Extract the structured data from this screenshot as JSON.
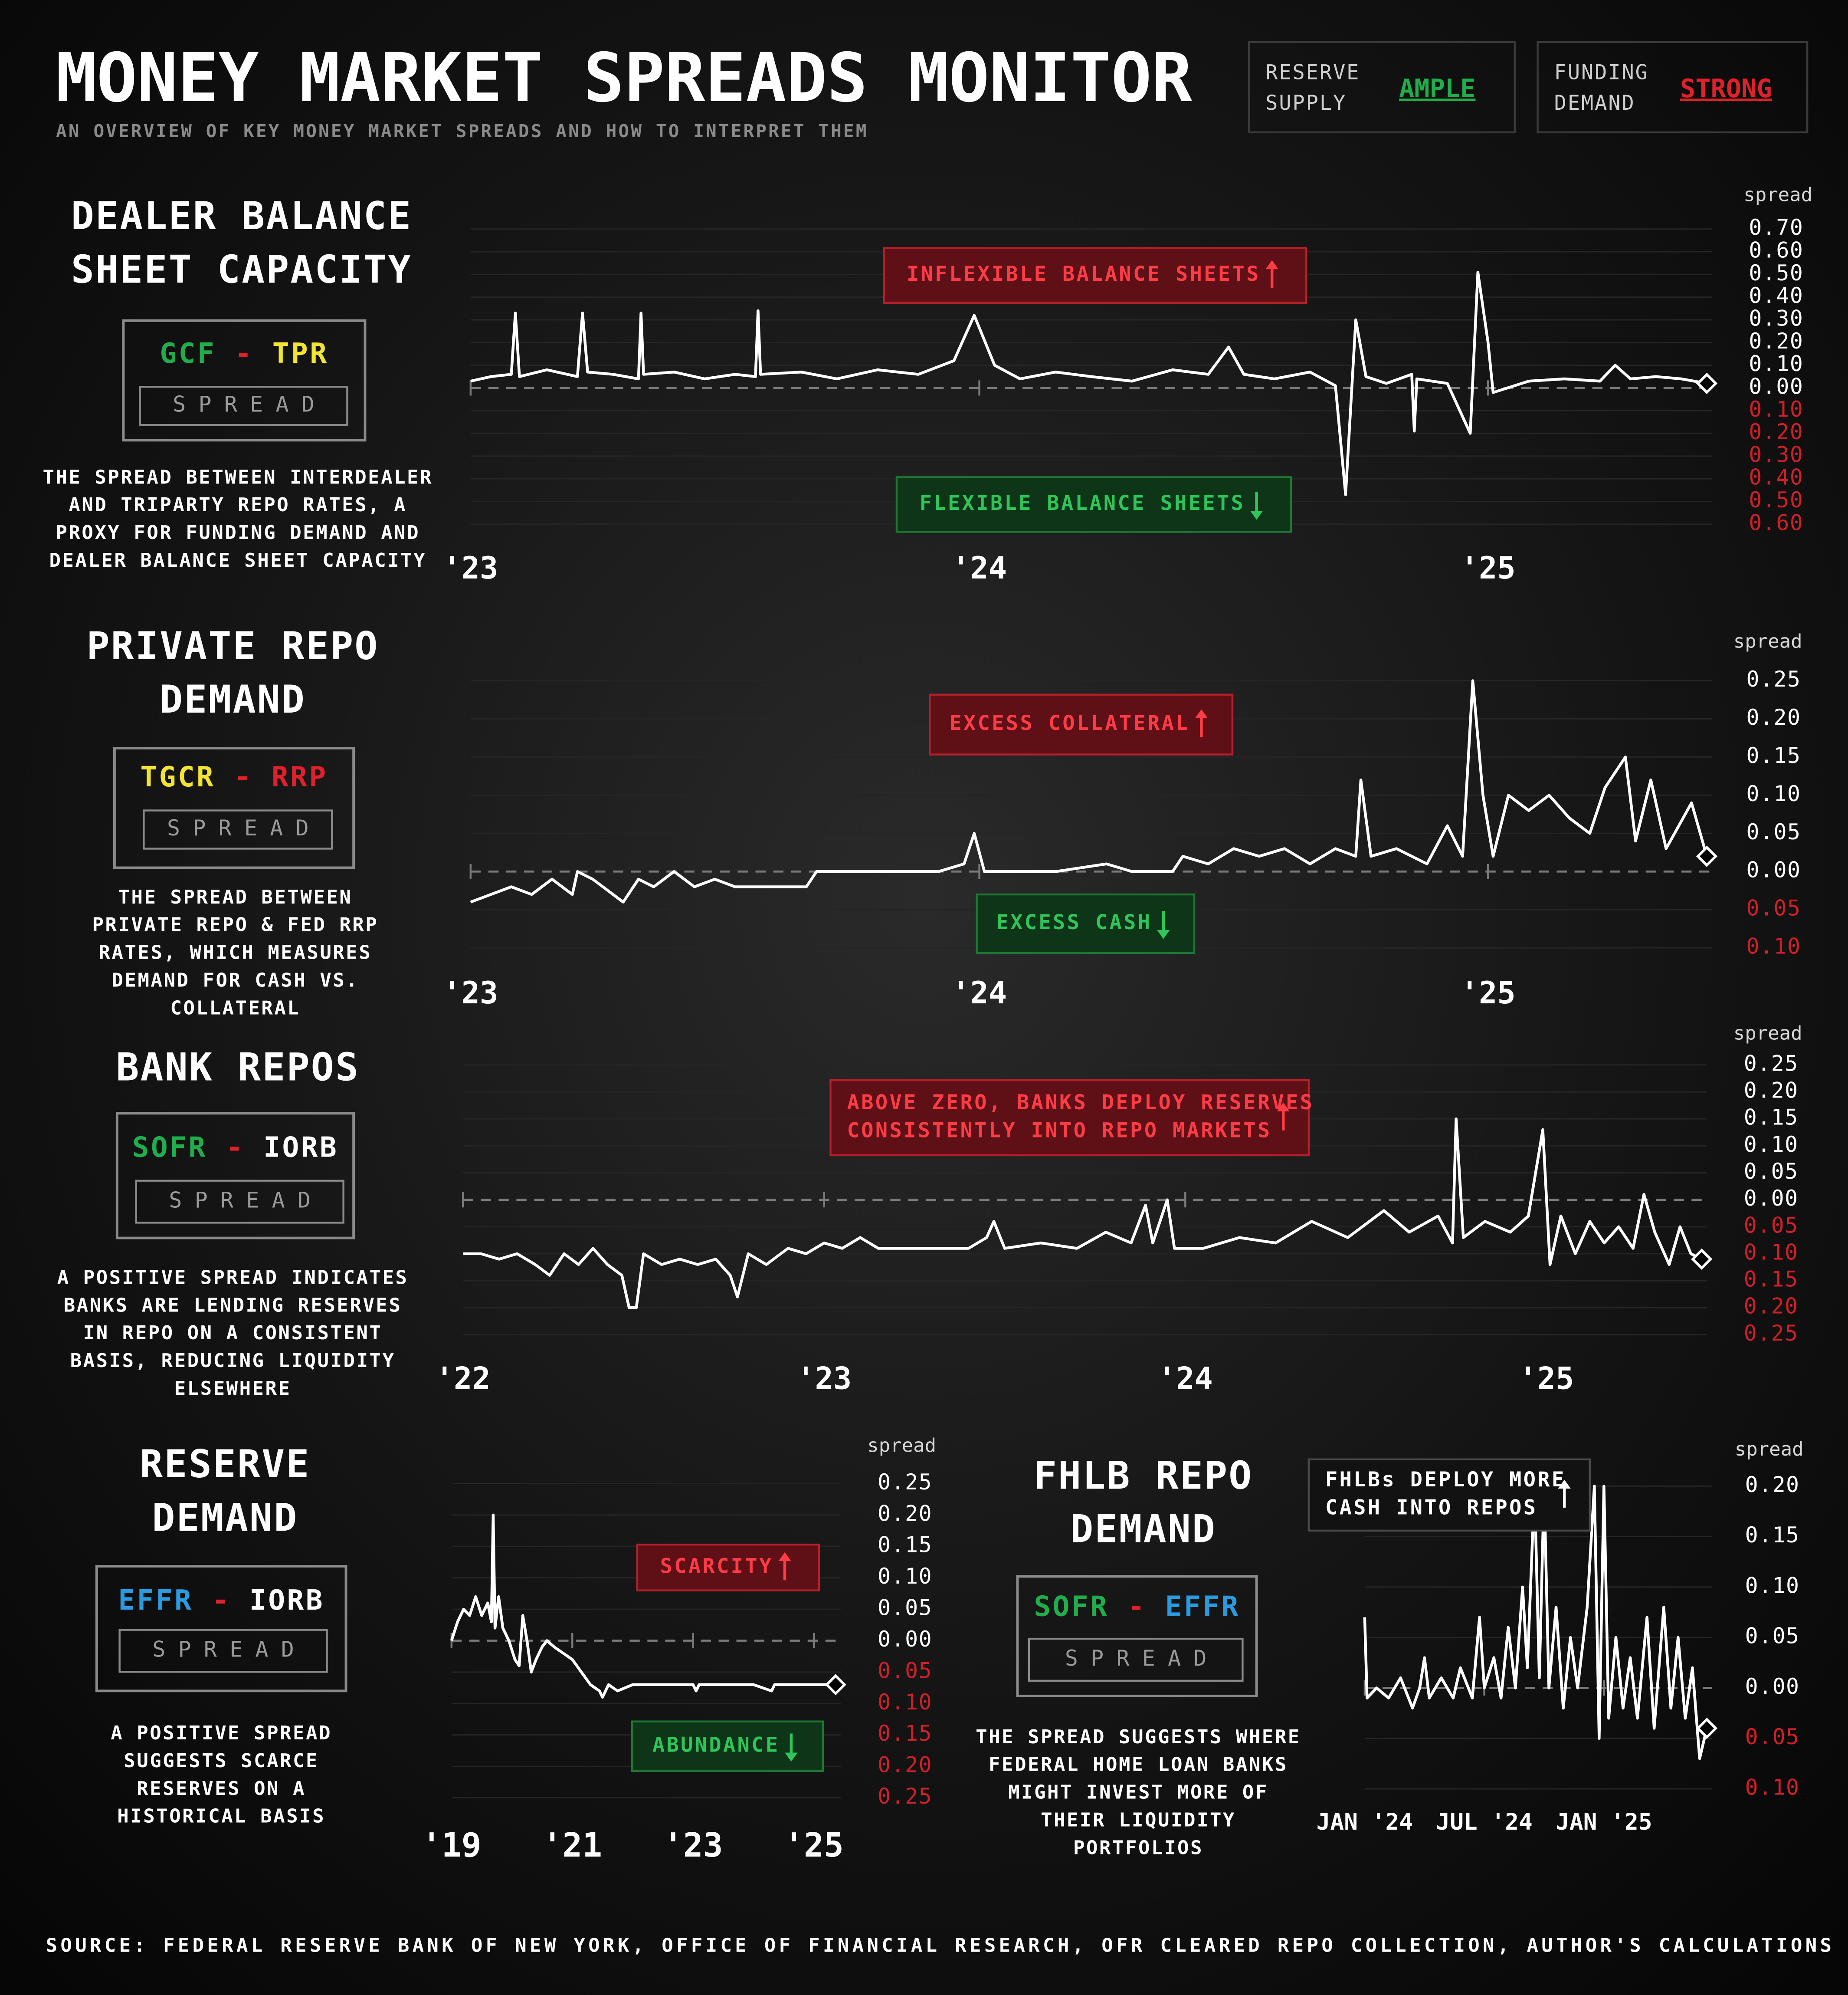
{
  "header": {
    "title": "MONEY MARKET SPREADS MONITOR",
    "subtitle": "AN OVERVIEW OF KEY MONEY MARKET SPREADS AND HOW TO INTERPRET THEM",
    "indicators": [
      {
        "label": [
          "RESERVE",
          "SUPPLY"
        ],
        "value": "AMPLE",
        "color": "#1fae4b"
      },
      {
        "label": [
          "FUNDING",
          "DEMAND"
        ],
        "value": "STRONG",
        "color": "#e0202a"
      }
    ]
  },
  "source": "SOURCE: FEDERAL RESERVE BANK OF NEW YORK, OFFICE OF FINANCIAL RESEARCH, OFR CLEARED REPO COLLECTION, AUTHOR'S CALCULATIONS",
  "chart_data": [
    {
      "type": "line",
      "title": [
        "DEALER BALANCE",
        "SHEET CAPACITY"
      ],
      "formula": {
        "left": "GCF",
        "left_color": "#1fae4b",
        "op": "-",
        "op_color": "#e0202a",
        "right": "TPR",
        "right_color": "#f2e433"
      },
      "badge": "SPREAD",
      "description": [
        "THE SPREAD BETWEEN INTERDEALER",
        "AND TRIPARTY REPO RATES, A",
        "PROXY FOR FUNDING DEMAND AND",
        "DEALER BALANCE SHEET CAPACITY"
      ],
      "ylabel": "spread",
      "color": "#ffffff",
      "negative_tick_color": "#d11f28",
      "grid": true,
      "annotations": [
        {
          "text": [
            "INFLEXIBLE BALANCE SHEETS"
          ],
          "tone": "red",
          "arrow": "up"
        },
        {
          "text": [
            "FLEXIBLE BALANCE SHEETS"
          ],
          "tone": "green",
          "arrow": "down"
        }
      ],
      "xlim": [
        2023,
        2025.43
      ],
      "xticks": [
        {
          "value": 2023,
          "label": "'23"
        },
        {
          "value": 2024,
          "label": "'24"
        },
        {
          "value": 2025,
          "label": "'25"
        }
      ],
      "ylim": [
        -0.6,
        0.7
      ],
      "yticks": [
        {
          "value": 0.7,
          "label": "0.70"
        },
        {
          "value": 0.6,
          "label": "0.60"
        },
        {
          "value": 0.5,
          "label": "0.50"
        },
        {
          "value": 0.4,
          "label": "0.40"
        },
        {
          "value": 0.3,
          "label": "0.30"
        },
        {
          "value": 0.2,
          "label": "0.20"
        },
        {
          "value": 0.1,
          "label": "0.10"
        },
        {
          "value": 0,
          "label": "0.00"
        },
        {
          "value": -0.1,
          "label": "0.10"
        },
        {
          "value": -0.2,
          "label": "0.20"
        },
        {
          "value": -0.3,
          "label": "0.30"
        },
        {
          "value": -0.4,
          "label": "0.40"
        },
        {
          "value": -0.5,
          "label": "0.50"
        },
        {
          "value": -0.6,
          "label": "0.60"
        }
      ],
      "x": [
        2023.0,
        2023.04,
        2023.08,
        2023.088,
        2023.096,
        2023.15,
        2023.21,
        2023.22,
        2023.23,
        2023.28,
        2023.33,
        2023.335,
        2023.34,
        2023.4,
        2023.46,
        2023.52,
        2023.56,
        2023.565,
        2023.57,
        2023.65,
        2023.72,
        2023.8,
        2023.88,
        2023.95,
        2023.99,
        2024.03,
        2024.08,
        2024.15,
        2024.22,
        2024.3,
        2024.38,
        2024.45,
        2024.49,
        2024.52,
        2024.58,
        2024.65,
        2024.7,
        2024.72,
        2024.74,
        2024.76,
        2024.8,
        2024.85,
        2024.855,
        2024.86,
        2024.92,
        2024.965,
        2024.98,
        2025.0,
        2025.01,
        2025.08,
        2025.15,
        2025.22,
        2025.25,
        2025.28,
        2025.33,
        2025.38,
        2025.43
      ],
      "values": [
        0.03,
        0.05,
        0.06,
        0.33,
        0.05,
        0.08,
        0.05,
        0.33,
        0.07,
        0.06,
        0.04,
        0.33,
        0.06,
        0.07,
        0.04,
        0.06,
        0.05,
        0.34,
        0.06,
        0.07,
        0.04,
        0.08,
        0.06,
        0.12,
        0.32,
        0.1,
        0.04,
        0.07,
        0.05,
        0.03,
        0.08,
        0.06,
        0.18,
        0.06,
        0.04,
        0.07,
        0.01,
        -0.47,
        0.3,
        0.05,
        0.02,
        0.06,
        -0.19,
        0.04,
        0.02,
        -0.2,
        0.51,
        0.2,
        -0.02,
        0.03,
        0.04,
        0.03,
        0.1,
        0.04,
        0.05,
        0.04,
        0.02
      ]
    },
    {
      "type": "line",
      "title": [
        "PRIVATE REPO",
        "DEMAND"
      ],
      "formula": {
        "left": "TGCR",
        "left_color": "#f2e433",
        "op": "-",
        "op_color": "#e0202a",
        "right": "RRP",
        "right_color": "#e0202a"
      },
      "badge": "SPREAD",
      "description": [
        "THE SPREAD BETWEEN",
        "PRIVATE REPO & FED RRP",
        "RATES, WHICH MEASURES",
        "DEMAND FOR CASH VS.",
        "COLLATERAL"
      ],
      "ylabel": "spread",
      "color": "#ffffff",
      "negative_tick_color": "#d11f28",
      "grid": true,
      "annotations": [
        {
          "text": [
            "EXCESS COLLATERAL"
          ],
          "tone": "red",
          "arrow": "up"
        },
        {
          "text": [
            "EXCESS CASH"
          ],
          "tone": "green",
          "arrow": "down"
        }
      ],
      "xlim": [
        2023,
        2025.43
      ],
      "xticks": [
        {
          "value": 2023,
          "label": "'23"
        },
        {
          "value": 2024,
          "label": "'24"
        },
        {
          "value": 2025,
          "label": "'25"
        }
      ],
      "ylim": [
        -0.1,
        0.25
      ],
      "yticks": [
        {
          "value": 0.25,
          "label": "0.25"
        },
        {
          "value": 0.2,
          "label": "0.20"
        },
        {
          "value": 0.15,
          "label": "0.15"
        },
        {
          "value": 0.1,
          "label": "0.10"
        },
        {
          "value": 0.05,
          "label": "0.05"
        },
        {
          "value": 0,
          "label": "0.00"
        },
        {
          "value": -0.05,
          "label": "0.05"
        },
        {
          "value": -0.1,
          "label": "0.10"
        }
      ],
      "x": [
        2023.0,
        2023.04,
        2023.08,
        2023.12,
        2023.16,
        2023.2,
        2023.21,
        2023.24,
        2023.28,
        2023.3,
        2023.33,
        2023.36,
        2023.4,
        2023.44,
        2023.48,
        2023.52,
        2023.56,
        2023.6,
        2023.66,
        2023.68,
        2023.85,
        2023.92,
        2023.97,
        2023.99,
        2024.01,
        2024.15,
        2024.25,
        2024.3,
        2024.38,
        2024.4,
        2024.45,
        2024.5,
        2024.55,
        2024.6,
        2024.65,
        2024.7,
        2024.74,
        2024.75,
        2024.77,
        2024.82,
        2024.88,
        2024.92,
        2024.95,
        2024.97,
        2024.99,
        2025.01,
        2025.04,
        2025.08,
        2025.12,
        2025.16,
        2025.2,
        2025.23,
        2025.27,
        2025.29,
        2025.32,
        2025.35,
        2025.4,
        2025.43
      ],
      "values": [
        -0.04,
        -0.03,
        -0.02,
        -0.03,
        -0.01,
        -0.03,
        0.0,
        -0.01,
        -0.03,
        -0.04,
        -0.01,
        -0.02,
        0.0,
        -0.02,
        -0.01,
        -0.02,
        -0.02,
        -0.02,
        -0.02,
        0.0,
        0.0,
        0.0,
        0.01,
        0.05,
        0.0,
        0.0,
        0.01,
        0.0,
        0.0,
        0.02,
        0.01,
        0.03,
        0.02,
        0.03,
        0.01,
        0.03,
        0.02,
        0.12,
        0.02,
        0.03,
        0.01,
        0.06,
        0.02,
        0.25,
        0.1,
        0.02,
        0.1,
        0.08,
        0.1,
        0.07,
        0.05,
        0.11,
        0.15,
        0.04,
        0.12,
        0.03,
        0.09,
        0.02
      ]
    },
    {
      "type": "line",
      "title": [
        "BANK REPOS"
      ],
      "formula": {
        "left": "SOFR",
        "left_color": "#1fae4b",
        "op": "-",
        "op_color": "#e0202a",
        "right": "IORB",
        "right_color": "#ffffff"
      },
      "badge": "SPREAD",
      "description": [
        "A POSITIVE SPREAD INDICATES",
        "BANKS ARE LENDING RESERVES",
        "IN REPO ON A CONSISTENT",
        "BASIS, REDUCING LIQUIDITY",
        "ELSEWHERE"
      ],
      "ylabel": "spread",
      "color": "#ffffff",
      "negative_tick_color": "#d11f28",
      "grid": true,
      "annotations": [
        {
          "text": [
            "ABOVE ZERO, BANKS DEPLOY RESERVES",
            "CONSISTENTLY INTO REPO MARKETS"
          ],
          "tone": "red",
          "arrow": "up"
        }
      ],
      "xlim": [
        2022,
        2025.43
      ],
      "xticks": [
        {
          "value": 2022,
          "label": "'22"
        },
        {
          "value": 2023,
          "label": "'23"
        },
        {
          "value": 2024,
          "label": "'24"
        },
        {
          "value": 2025,
          "label": "'25"
        }
      ],
      "ylim": [
        -0.25,
        0.25
      ],
      "yticks": [
        {
          "value": 0.25,
          "label": "0.25"
        },
        {
          "value": 0.2,
          "label": "0.20"
        },
        {
          "value": 0.15,
          "label": "0.15"
        },
        {
          "value": 0.1,
          "label": "0.10"
        },
        {
          "value": 0.05,
          "label": "0.05"
        },
        {
          "value": 0,
          "label": "0.00"
        },
        {
          "value": -0.05,
          "label": "0.05"
        },
        {
          "value": -0.1,
          "label": "0.10"
        },
        {
          "value": -0.15,
          "label": "0.15"
        },
        {
          "value": -0.2,
          "label": "0.20"
        },
        {
          "value": -0.25,
          "label": "0.25"
        }
      ],
      "x": [
        2022.0,
        2022.05,
        2022.1,
        2022.15,
        2022.2,
        2022.24,
        2022.28,
        2022.32,
        2022.36,
        2022.4,
        2022.44,
        2022.46,
        2022.48,
        2022.5,
        2022.55,
        2022.6,
        2022.65,
        2022.7,
        2022.74,
        2022.76,
        2022.79,
        2022.84,
        2022.9,
        2022.95,
        2023.0,
        2023.05,
        2023.1,
        2023.15,
        2023.2,
        2023.3,
        2023.4,
        2023.45,
        2023.47,
        2023.5,
        2023.6,
        2023.7,
        2023.78,
        2023.85,
        2023.89,
        2023.91,
        2023.95,
        2023.97,
        2024.05,
        2024.15,
        2024.25,
        2024.35,
        2024.45,
        2024.55,
        2024.62,
        2024.7,
        2024.74,
        2024.75,
        2024.77,
        2024.83,
        2024.9,
        2024.95,
        2024.99,
        2025.01,
        2025.04,
        2025.08,
        2025.12,
        2025.16,
        2025.2,
        2025.24,
        2025.27,
        2025.3,
        2025.34,
        2025.37,
        2025.4,
        2025.43
      ],
      "values": [
        -0.1,
        -0.1,
        -0.11,
        -0.1,
        -0.12,
        -0.14,
        -0.1,
        -0.12,
        -0.09,
        -0.12,
        -0.14,
        -0.2,
        -0.2,
        -0.1,
        -0.12,
        -0.11,
        -0.12,
        -0.11,
        -0.14,
        -0.18,
        -0.1,
        -0.12,
        -0.09,
        -0.1,
        -0.08,
        -0.09,
        -0.07,
        -0.09,
        -0.09,
        -0.09,
        -0.09,
        -0.07,
        -0.04,
        -0.09,
        -0.08,
        -0.09,
        -0.06,
        -0.08,
        -0.01,
        -0.08,
        0.0,
        -0.09,
        -0.09,
        -0.07,
        -0.08,
        -0.04,
        -0.07,
        -0.02,
        -0.06,
        -0.03,
        -0.08,
        0.15,
        -0.07,
        -0.04,
        -0.06,
        -0.03,
        0.13,
        -0.12,
        -0.03,
        -0.1,
        -0.04,
        -0.08,
        -0.05,
        -0.09,
        0.01,
        -0.06,
        -0.12,
        -0.05,
        -0.1,
        -0.11
      ]
    },
    {
      "type": "line",
      "title": [
        "RESERVE",
        "DEMAND"
      ],
      "formula": {
        "left": "EFFR",
        "left_color": "#2b9be0",
        "op": "-",
        "op_color": "#e0202a",
        "right": "IORB",
        "right_color": "#ffffff"
      },
      "badge": "SPREAD",
      "description": [
        "A POSITIVE SPREAD",
        "SUGGESTS SCARCE",
        "RESERVES ON A",
        "HISTORICAL BASIS"
      ],
      "ylabel": "spread",
      "color": "#ffffff",
      "negative_tick_color": "#d11f28",
      "grid": true,
      "annotations": [
        {
          "text": [
            "SCARCITY"
          ],
          "tone": "red",
          "arrow": "up"
        },
        {
          "text": [
            "ABUNDANCE"
          ],
          "tone": "green",
          "arrow": "down"
        }
      ],
      "xlim": [
        2019,
        2025.36
      ],
      "xticks": [
        {
          "value": 2019,
          "label": "'19"
        },
        {
          "value": 2021,
          "label": "'21"
        },
        {
          "value": 2023,
          "label": "'23"
        },
        {
          "value": 2025,
          "label": "'25"
        }
      ],
      "ylim": [
        -0.25,
        0.25
      ],
      "yticks": [
        {
          "value": 0.25,
          "label": "0.25"
        },
        {
          "value": 0.2,
          "label": "0.20"
        },
        {
          "value": 0.15,
          "label": "0.15"
        },
        {
          "value": 0.1,
          "label": "0.10"
        },
        {
          "value": 0.05,
          "label": "0.05"
        },
        {
          "value": 0,
          "label": "0.00"
        },
        {
          "value": -0.05,
          "label": "0.05"
        },
        {
          "value": -0.1,
          "label": "0.10"
        },
        {
          "value": -0.15,
          "label": "0.15"
        },
        {
          "value": -0.2,
          "label": "0.20"
        },
        {
          "value": -0.25,
          "label": "0.25"
        }
      ],
      "x": [
        2019.0,
        2019.1,
        2019.2,
        2019.3,
        2019.4,
        2019.5,
        2019.6,
        2019.66,
        2019.69,
        2019.72,
        2019.78,
        2019.85,
        2019.95,
        2020.05,
        2020.12,
        2020.18,
        2020.25,
        2020.32,
        2020.4,
        2020.5,
        2020.58,
        2020.7,
        2020.85,
        2021.0,
        2021.15,
        2021.3,
        2021.45,
        2021.5,
        2021.6,
        2021.75,
        2022.0,
        2022.5,
        2023.0,
        2023.05,
        2023.1,
        2024.0,
        2024.3,
        2024.35,
        2025.36
      ],
      "values": [
        0.0,
        0.03,
        0.05,
        0.04,
        0.07,
        0.04,
        0.06,
        0.03,
        0.2,
        0.02,
        0.07,
        0.02,
        0.0,
        -0.03,
        -0.04,
        0.04,
        0.0,
        -0.05,
        -0.03,
        -0.01,
        0.0,
        -0.01,
        -0.02,
        -0.03,
        -0.05,
        -0.07,
        -0.08,
        -0.09,
        -0.07,
        -0.08,
        -0.07,
        -0.07,
        -0.07,
        -0.08,
        -0.07,
        -0.07,
        -0.08,
        -0.07,
        -0.07
      ]
    },
    {
      "type": "line",
      "title": [
        "FHLB REPO",
        "DEMAND"
      ],
      "formula": {
        "left": "SOFR",
        "left_color": "#1fae4b",
        "op": "-",
        "op_color": "#e0202a",
        "right": "EFFR",
        "right_color": "#2b9be0"
      },
      "badge": "SPREAD",
      "description": [
        "THE SPREAD SUGGESTS WHERE",
        "FEDERAL HOME LOAN BANKS",
        "MIGHT INVEST MORE OF",
        "THEIR LIQUIDITY",
        "PORTFOLIOS"
      ],
      "ylabel": "spread",
      "color": "#ffffff",
      "negative_tick_color": "#d11f28",
      "grid": true,
      "annotations": [
        {
          "text": [
            "FHLBs DEPLOY MORE",
            "CASH INTO REPOS"
          ],
          "tone": "neutral",
          "arrow": "up"
        }
      ],
      "xlim": [
        2024,
        2025.43
      ],
      "xticks": [
        {
          "value": 2024,
          "label": "JAN '24"
        },
        {
          "value": 2024.5,
          "label": "JUL '24"
        },
        {
          "value": 2025,
          "label": "JAN '25"
        }
      ],
      "ylim": [
        -0.1,
        0.2
      ],
      "yticks": [
        {
          "value": 0.2,
          "label": "0.20"
        },
        {
          "value": 0.15,
          "label": "0.15"
        },
        {
          "value": 0.1,
          "label": "0.10"
        },
        {
          "value": 0.05,
          "label": "0.05"
        },
        {
          "value": 0,
          "label": "0.00"
        },
        {
          "value": -0.05,
          "label": "0.05"
        },
        {
          "value": -0.1,
          "label": "0.10"
        }
      ],
      "x": [
        2024.0,
        2024.01,
        2024.05,
        2024.1,
        2024.15,
        2024.2,
        2024.23,
        2024.25,
        2024.27,
        2024.32,
        2024.37,
        2024.4,
        2024.45,
        2024.48,
        2024.5,
        2024.54,
        2024.57,
        2024.6,
        2024.63,
        2024.66,
        2024.68,
        2024.71,
        2024.73,
        2024.75,
        2024.77,
        2024.8,
        2024.83,
        2024.86,
        2024.89,
        2024.93,
        2024.96,
        2024.98,
        2025.0,
        2025.02,
        2025.05,
        2025.08,
        2025.11,
        2025.14,
        2025.18,
        2025.21,
        2025.25,
        2025.28,
        2025.31,
        2025.34,
        2025.37,
        2025.4,
        2025.43
      ],
      "values": [
        0.07,
        -0.01,
        0.0,
        -0.01,
        0.01,
        -0.02,
        0.0,
        0.03,
        -0.01,
        0.01,
        -0.01,
        0.02,
        -0.01,
        0.07,
        0.0,
        0.03,
        -0.01,
        0.06,
        0.0,
        0.1,
        0.02,
        0.2,
        0.01,
        0.2,
        0.0,
        0.08,
        -0.02,
        0.05,
        0.0,
        0.08,
        0.2,
        -0.05,
        0.2,
        -0.03,
        0.05,
        -0.02,
        0.03,
        -0.03,
        0.07,
        -0.04,
        0.08,
        -0.02,
        0.05,
        -0.03,
        0.02,
        -0.07,
        -0.04
      ]
    }
  ]
}
